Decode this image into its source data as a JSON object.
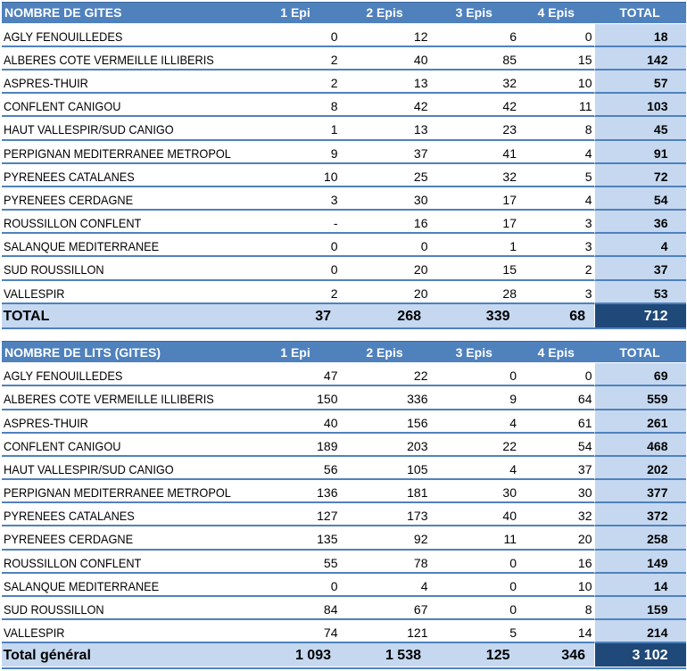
{
  "colors": {
    "header_blue": "#4f81bd",
    "light_blue": "#c5d8f0",
    "dark_navy": "#1f4979",
    "row_border_blue": "#5081bc",
    "header_text": "#ffffff",
    "body_text": "#000000"
  },
  "tables": [
    {
      "title": "NOMBRE DE GITES",
      "columns": [
        "1 Epi",
        "2 Epis",
        "3 Epis",
        "4 Epis",
        "TOTAL"
      ],
      "rows": [
        {
          "label": "AGLY FENOUILLEDES",
          "values": [
            "0",
            "12",
            "6",
            "0"
          ],
          "total": "18"
        },
        {
          "label": "ALBERES COTE VERMEILLE ILLIBERIS",
          "values": [
            "2",
            "40",
            "85",
            "15"
          ],
          "total": "142"
        },
        {
          "label": "ASPRES-THUIR",
          "values": [
            "2",
            "13",
            "32",
            "10"
          ],
          "total": "57"
        },
        {
          "label": "CONFLENT CANIGOU",
          "values": [
            "8",
            "42",
            "42",
            "11"
          ],
          "total": "103"
        },
        {
          "label": "HAUT VALLESPIR/SUD CANIGO",
          "values": [
            "1",
            "13",
            "23",
            "8"
          ],
          "total": "45"
        },
        {
          "label": "PERPIGNAN MEDITERRANEE METROPOL",
          "values": [
            "9",
            "37",
            "41",
            "4"
          ],
          "total": "91"
        },
        {
          "label": "PYRENEES CATALANES",
          "values": [
            "10",
            "25",
            "32",
            "5"
          ],
          "total": "72"
        },
        {
          "label": "PYRENEES CERDAGNE",
          "values": [
            "3",
            "30",
            "17",
            "4"
          ],
          "total": "54"
        },
        {
          "label": "ROUSSILLON CONFLENT",
          "values": [
            "-",
            "16",
            "17",
            "3"
          ],
          "total": "36"
        },
        {
          "label": "SALANQUE MEDITERRANEE",
          "values": [
            "0",
            "0",
            "1",
            "3"
          ],
          "total": "4"
        },
        {
          "label": "SUD ROUSSILLON",
          "values": [
            "0",
            "20",
            "15",
            "2"
          ],
          "total": "37"
        },
        {
          "label": "VALLESPIR",
          "values": [
            "2",
            "20",
            "28",
            "3"
          ],
          "total": "53"
        }
      ],
      "total_row": {
        "label": "TOTAL",
        "values": [
          "37",
          "268",
          "339",
          "68"
        ],
        "total": "712"
      }
    },
    {
      "title": "NOMBRE DE LITS (GITES)",
      "columns": [
        "1 Epi",
        "2 Epis",
        "3 Epis",
        "4 Epis",
        "TOTAL"
      ],
      "rows": [
        {
          "label": "AGLY FENOUILLEDES",
          "values": [
            "47",
            "22",
            "0",
            "0"
          ],
          "total": "69"
        },
        {
          "label": "ALBERES COTE VERMEILLE ILLIBERIS",
          "values": [
            "150",
            "336",
            "9",
            "64"
          ],
          "total": "559"
        },
        {
          "label": "ASPRES-THUIR",
          "values": [
            "40",
            "156",
            "4",
            "61"
          ],
          "total": "261"
        },
        {
          "label": "CONFLENT CANIGOU",
          "values": [
            "189",
            "203",
            "22",
            "54"
          ],
          "total": "468"
        },
        {
          "label": "HAUT VALLESPIR/SUD CANIGO",
          "values": [
            "56",
            "105",
            "4",
            "37"
          ],
          "total": "202"
        },
        {
          "label": "PERPIGNAN MEDITERRANEE METROPOL",
          "values": [
            "136",
            "181",
            "30",
            "30"
          ],
          "total": "377"
        },
        {
          "label": "PYRENEES CATALANES",
          "values": [
            "127",
            "173",
            "40",
            "32"
          ],
          "total": "372"
        },
        {
          "label": "PYRENEES CERDAGNE",
          "values": [
            "135",
            "92",
            "11",
            "20"
          ],
          "total": "258"
        },
        {
          "label": "ROUSSILLON CONFLENT",
          "values": [
            "55",
            "78",
            "0",
            "16"
          ],
          "total": "149"
        },
        {
          "label": "SALANQUE MEDITERRANEE",
          "values": [
            "0",
            "4",
            "0",
            "10"
          ],
          "total": "14"
        },
        {
          "label": "SUD ROUSSILLON",
          "values": [
            "84",
            "67",
            "0",
            "8"
          ],
          "total": "159"
        },
        {
          "label": "VALLESPIR",
          "values": [
            "74",
            "121",
            "5",
            "14"
          ],
          "total": "214"
        }
      ],
      "total_row": {
        "label": "Total général",
        "values": [
          "1 093",
          "1 538",
          "125",
          "346"
        ],
        "total": "3 102"
      }
    }
  ]
}
